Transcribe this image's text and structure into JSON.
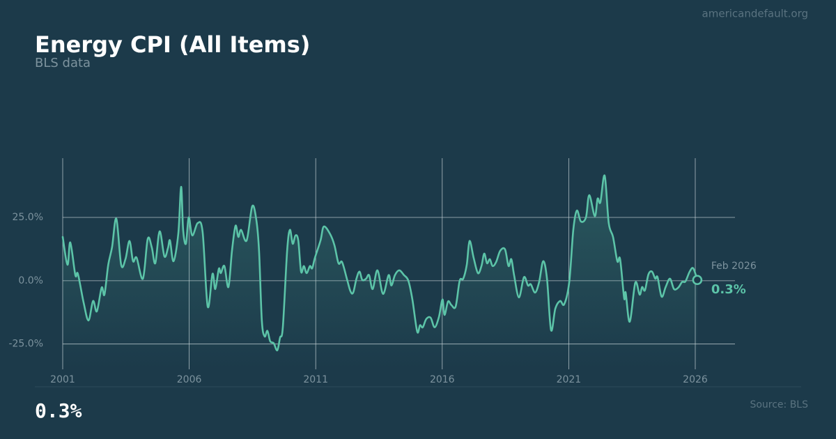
{
  "chart_data": {
    "type": "line",
    "title": "Energy CPI (All Items)",
    "subtitle": "BLS data",
    "site": "americandefault.org",
    "source": "Source: BLS",
    "headline": "0.3%",
    "end_date_label": "Feb 2026",
    "end_value_label": "0.3%",
    "color": "#5cc4a8",
    "grid": true,
    "xlim": [
      2001,
      2027.57
    ],
    "xticks": [
      2001,
      2006,
      2011,
      2016,
      2021,
      2026
    ],
    "ylim": [
      -35,
      48.4
    ],
    "yticks": [
      {
        "value": 25,
        "label": "25.0%"
      },
      {
        "value": 0,
        "label": "0.0%"
      },
      {
        "value": -25,
        "label": "-25.0%"
      }
    ],
    "x": [
      2001.0,
      2001.19,
      2001.3,
      2001.5,
      2001.6,
      2001.83,
      2002.02,
      2002.2,
      2002.35,
      2002.54,
      2002.65,
      2002.8,
      2002.95,
      2003.12,
      2003.31,
      2003.48,
      2003.64,
      2003.78,
      2003.92,
      2004.17,
      2004.36,
      2004.52,
      2004.66,
      2004.83,
      2005.02,
      2005.16,
      2005.24,
      2005.38,
      2005.57,
      2005.68,
      2005.76,
      2005.87,
      2005.98,
      2006.12,
      2006.34,
      2006.53,
      2006.73,
      2006.92,
      2007.03,
      2007.17,
      2007.25,
      2007.39,
      2007.55,
      2007.69,
      2007.83,
      2007.94,
      2008.05,
      2008.27,
      2008.49,
      2008.65,
      2008.76,
      2008.87,
      2008.98,
      2009.09,
      2009.2,
      2009.34,
      2009.48,
      2009.59,
      2009.7,
      2009.87,
      2009.98,
      2010.09,
      2010.2,
      2010.31,
      2010.42,
      2010.53,
      2010.64,
      2010.77,
      2010.86,
      2010.97,
      2011.19,
      2011.32,
      2011.57,
      2011.74,
      2011.9,
      2012.04,
      2012.23,
      2012.37,
      2012.48,
      2012.61,
      2012.73,
      2012.84,
      2012.99,
      2013.11,
      2013.25,
      2013.44,
      2013.66,
      2013.88,
      2013.99,
      2014.13,
      2014.3,
      2014.49,
      2014.66,
      2014.82,
      2015.01,
      2015.12,
      2015.23,
      2015.37,
      2015.54,
      2015.7,
      2015.87,
      2016.01,
      2016.09,
      2016.23,
      2016.36,
      2016.53,
      2016.69,
      2016.83,
      2016.97,
      2017.08,
      2017.24,
      2017.41,
      2017.55,
      2017.66,
      2017.77,
      2017.88,
      2017.99,
      2018.13,
      2018.29,
      2018.48,
      2018.62,
      2018.73,
      2018.84,
      2019.03,
      2019.23,
      2019.39,
      2019.5,
      2019.67,
      2019.83,
      2019.99,
      2020.14,
      2020.3,
      2020.47,
      2020.66,
      2020.82,
      2021.02,
      2021.18,
      2021.32,
      2021.48,
      2021.68,
      2021.81,
      2022.03,
      2022.14,
      2022.25,
      2022.42,
      2022.58,
      2022.75,
      2022.92,
      2023.03,
      2023.19,
      2023.25,
      2023.41,
      2023.63,
      2023.8,
      2023.9,
      2024.01,
      2024.15,
      2024.29,
      2024.42,
      2024.51,
      2024.67,
      2024.83,
      2025.0,
      2025.16,
      2025.33,
      2025.48,
      2025.61,
      2025.78,
      2025.92,
      2026.08
    ],
    "values": [
      17.3,
      6.3,
      15.1,
      2.2,
      2.7,
      -8.8,
      -15.7,
      -8.0,
      -12.1,
      -2.7,
      -5.5,
      6.3,
      13.2,
      24.5,
      6.3,
      8.5,
      15.7,
      7.7,
      9.1,
      0.8,
      16.5,
      13.2,
      6.9,
      19.5,
      9.6,
      12.9,
      15.9,
      7.7,
      18.7,
      37.1,
      20.1,
      14.6,
      25.0,
      17.9,
      22.8,
      19.2,
      -10.2,
      2.7,
      -3.3,
      4.7,
      3.0,
      5.8,
      -2.5,
      11.8,
      21.7,
      17.3,
      20.1,
      15.9,
      29.4,
      24.2,
      11.8,
      -15.7,
      -22.0,
      -19.8,
      -23.9,
      -24.7,
      -27.5,
      -22.5,
      -18.4,
      11.8,
      20.1,
      14.6,
      17.9,
      15.9,
      3.6,
      5.8,
      3.0,
      5.8,
      4.9,
      9.1,
      15.9,
      21.4,
      18.4,
      14.0,
      6.9,
      7.4,
      0.8,
      -4.1,
      -4.7,
      0.8,
      3.6,
      0.3,
      0.8,
      2.2,
      -3.3,
      4.1,
      -5.2,
      2.2,
      -1.9,
      2.2,
      4.1,
      2.2,
      0,
      -7.4,
      -20.1,
      -17.6,
      -18.4,
      -15.1,
      -14.6,
      -18.4,
      -14.3,
      -7.4,
      -13.5,
      -8.2,
      -9.6,
      -10.2,
      0,
      0.8,
      6.3,
      15.7,
      9.1,
      3.0,
      5.8,
      10.7,
      6.9,
      8.5,
      5.8,
      7.4,
      11.8,
      12.4,
      5.8,
      8.5,
      2.2,
      -6.6,
      1.4,
      -1.9,
      -1.4,
      -4.7,
      -0.5,
      7.7,
      0.8,
      -19.5,
      -11.0,
      -8.0,
      -9.3,
      -0.5,
      20.1,
      27.7,
      23.4,
      25.0,
      33.8,
      25.5,
      32.4,
      31.0,
      41.5,
      22.8,
      17.3,
      7.7,
      8.5,
      -6.9,
      -4.7,
      -16.2,
      -0.8,
      -5.5,
      -2.5,
      -3.8,
      2.5,
      3.6,
      0.8,
      1.4,
      -6.3,
      -2.5,
      0.8,
      -3.3,
      -2.7,
      -0.5,
      -0.3,
      3.6,
      4.9,
      0.3
    ]
  }
}
